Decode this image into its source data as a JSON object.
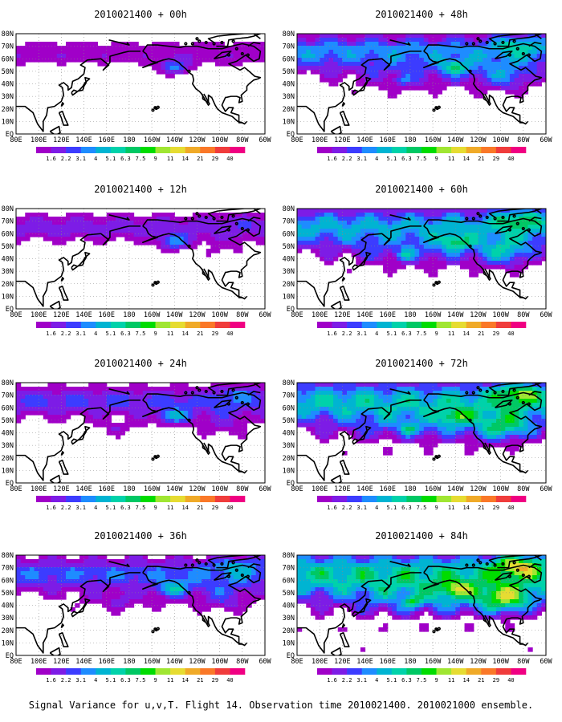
{
  "figure": {
    "caption": "Signal Variance for u,v,T. Flight 14. Observation time 2010021400. 2010021000 ensemble."
  },
  "panels": [
    {
      "title": "2010021400 + 00h",
      "hour": 0
    },
    {
      "title": "2010021400 + 48h",
      "hour": 48
    },
    {
      "title": "2010021400 + 12h",
      "hour": 12
    },
    {
      "title": "2010021400 + 60h",
      "hour": 60
    },
    {
      "title": "2010021400 + 24h",
      "hour": 24
    },
    {
      "title": "2010021400 + 72h",
      "hour": 72
    },
    {
      "title": "2010021400 + 36h",
      "hour": 36
    },
    {
      "title": "2010021400 + 84h",
      "hour": 84
    }
  ],
  "map": {
    "lon_labels": [
      "80E",
      "100E",
      "120E",
      "140E",
      "160E",
      "180",
      "160W",
      "140W",
      "120W",
      "100W",
      "80W",
      "60W"
    ],
    "lat_labels": [
      "EQ",
      "10N",
      "20N",
      "30N",
      "40N",
      "50N",
      "60N",
      "70N",
      "80N"
    ]
  },
  "colorbar": {
    "levels": [
      "1.6",
      "2.2",
      "3.1",
      "4",
      "5.1",
      "6.3",
      "7.5",
      "9",
      "11",
      "14",
      "21",
      "29",
      "40"
    ],
    "colors": [
      "#a000c8",
      "#7d1ce6",
      "#3c3cff",
      "#1e8cff",
      "#00b4d2",
      "#00d2aa",
      "#00c864",
      "#00dc00",
      "#a0e632",
      "#e6dc32",
      "#f0aa28",
      "#fa7828",
      "#f03c3c",
      "#f00082"
    ]
  }
}
